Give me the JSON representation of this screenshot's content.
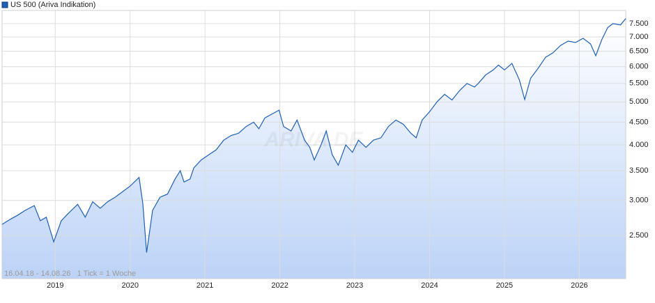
{
  "chart_data": {
    "type": "area",
    "legend": "US 500 (Ariva Indikation)",
    "note": "16.04.18 - 14.08.26   1 Tick = 1 Woche",
    "watermark": "ARIVA.DE",
    "log_scale": true,
    "grid": true,
    "color": "#1f5fb4",
    "xlim": [
      2018.29,
      2026.62
    ],
    "xticks": [
      2019,
      2020,
      2021,
      2022,
      2023,
      2024,
      2025,
      2026
    ],
    "ylim": [
      2000,
      8030
    ],
    "yticks": [
      {
        "value": 2500,
        "label": "2.500"
      },
      {
        "value": 3000,
        "label": "3.000"
      },
      {
        "value": 3500,
        "label": "3.500"
      },
      {
        "value": 4000,
        "label": "4.000"
      },
      {
        "value": 4500,
        "label": "4.500"
      },
      {
        "value": 5000,
        "label": "5.000"
      },
      {
        "value": 5500,
        "label": "5.500"
      },
      {
        "value": 6000,
        "label": "6.000"
      },
      {
        "value": 6500,
        "label": "6.500"
      },
      {
        "value": 7000,
        "label": "7.000"
      },
      {
        "value": 7500,
        "label": "7.500"
      }
    ],
    "x": [
      2018.29,
      2018.4,
      2018.5,
      2018.6,
      2018.72,
      2018.8,
      2018.88,
      2018.98,
      2019.08,
      2019.17,
      2019.3,
      2019.4,
      2019.5,
      2019.6,
      2019.7,
      2019.8,
      2019.9,
      2020.0,
      2020.12,
      2020.17,
      2020.22,
      2020.3,
      2020.4,
      2020.5,
      2020.6,
      2020.67,
      2020.72,
      2020.8,
      2020.85,
      2020.95,
      2021.05,
      2021.15,
      2021.25,
      2021.35,
      2021.45,
      2021.55,
      2021.65,
      2021.72,
      2021.8,
      2021.9,
      2021.99,
      2022.05,
      2022.15,
      2022.23,
      2022.33,
      2022.4,
      2022.46,
      2022.55,
      2022.62,
      2022.7,
      2022.78,
      2022.88,
      2022.97,
      2023.05,
      2023.15,
      2023.25,
      2023.35,
      2023.45,
      2023.55,
      2023.65,
      2023.75,
      2023.82,
      2023.9,
      2024.0,
      2024.1,
      2024.2,
      2024.3,
      2024.4,
      2024.5,
      2024.6,
      2024.65,
      2024.75,
      2024.85,
      2024.92,
      2025.0,
      2025.1,
      2025.2,
      2025.27,
      2025.35,
      2025.45,
      2025.55,
      2025.65,
      2025.75,
      2025.85,
      2025.95,
      2026.05,
      2026.15,
      2026.22,
      2026.3,
      2026.38,
      2026.45,
      2026.55,
      2026.62
    ],
    "values": [
      2650,
      2720,
      2780,
      2850,
      2920,
      2700,
      2750,
      2420,
      2700,
      2800,
      2940,
      2750,
      2980,
      2880,
      2980,
      3050,
      3140,
      3230,
      3380,
      2950,
      2290,
      2850,
      3050,
      3100,
      3350,
      3500,
      3300,
      3350,
      3550,
      3700,
      3800,
      3900,
      4100,
      4200,
      4250,
      4400,
      4500,
      4350,
      4600,
      4700,
      4790,
      4400,
      4300,
      4550,
      4100,
      3950,
      3700,
      4000,
      4300,
      3800,
      3600,
      4000,
      3850,
      4100,
      3950,
      4100,
      4150,
      4400,
      4550,
      4450,
      4250,
      4150,
      4550,
      4750,
      5000,
      5200,
      5050,
      5300,
      5500,
      5400,
      5500,
      5750,
      5900,
      6050,
      5900,
      6100,
      5600,
      5060,
      5650,
      5950,
      6300,
      6450,
      6700,
      6850,
      6800,
      6950,
      6750,
      6350,
      6900,
      7350,
      7500,
      7450,
      7700
    ]
  }
}
